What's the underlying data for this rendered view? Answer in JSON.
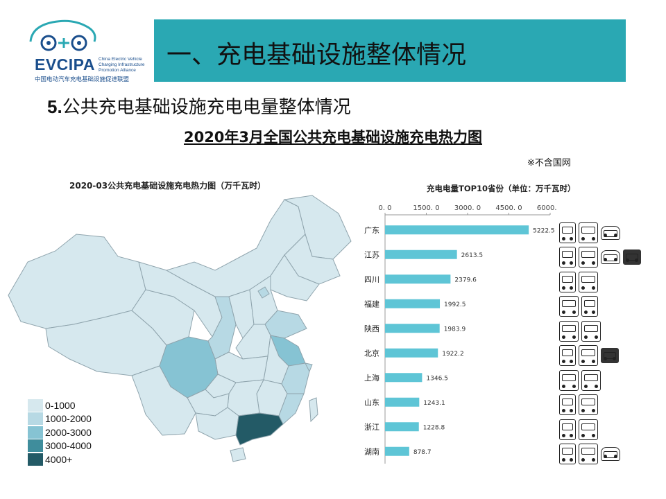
{
  "logo": {
    "name": "EVCIPA",
    "en": "China Electric Vehicle Charging Infrastructure Promotion Alliance",
    "cn": "中国电动汽车充电基础设施促进联盟"
  },
  "header": {
    "title": "一、充电基础设施整体情况"
  },
  "section": {
    "number": "5.",
    "title": "公共充电基础设施充电电量整体情况"
  },
  "heading": "2020年3月全国公共充电基础设施充电热力图",
  "note": "※不含国网",
  "colors": {
    "bin1": "#d6e8ee",
    "bin2": "#b7d9e4",
    "bin3": "#86c3d3",
    "bin4": "#3f8d9c",
    "bin5": "#235a66",
    "bar": "#5ec5d6"
  },
  "map": {
    "title": "2020-03公共充电基础设施充电热力图（万千瓦时）",
    "legend": [
      {
        "label": "0-1000",
        "color": "#d6e8ee"
      },
      {
        "label": "1000-2000",
        "color": "#b7d9e4"
      },
      {
        "label": "2000-3000",
        "color": "#86c3d3"
      },
      {
        "label": "3000-4000",
        "color": "#3f8d9c"
      },
      {
        "label": "4000+",
        "color": "#235a66"
      }
    ]
  },
  "chart_data": {
    "type": "bar",
    "orientation": "horizontal",
    "title": "充电电量TOP10省份（单位：万千瓦时）",
    "categories": [
      "广东",
      "江苏",
      "四川",
      "福建",
      "陕西",
      "北京",
      "上海",
      "山东",
      "浙江",
      "湖南"
    ],
    "values": [
      5222.5,
      2613.5,
      2379.6,
      1992.5,
      1983.9,
      1922.2,
      1346.5,
      1243.1,
      1228.8,
      878.7
    ],
    "value_labels": [
      "5222.5",
      "2613.5",
      "2379.6",
      "1992.5",
      "1983.9",
      "1922.2",
      "1346.5",
      "1243.1",
      "1228.8",
      "878.7"
    ],
    "xticks": [
      0,
      1500,
      3000,
      4500,
      6000
    ],
    "xtick_labels": [
      "0. 0",
      "1500. 0",
      "3000. 0",
      "4500. 0",
      "6000. 0"
    ],
    "xlim": [
      0,
      6000
    ],
    "axis_position": "top",
    "grid": false
  },
  "icons": [
    [
      "bus-icon",
      "car-icon",
      "taxi-icon"
    ],
    [
      "bus-icon",
      "car-icon",
      "taxi-icon",
      "truck-icon"
    ],
    [
      "bus-icon",
      "car-icon"
    ],
    [
      "car-icon",
      "bus-icon"
    ],
    [
      "car-icon",
      "car-icon"
    ],
    [
      "bus-icon",
      "car-icon",
      "truck-icon"
    ],
    [
      "car-icon",
      "car-icon"
    ],
    [
      "bus-icon",
      "car-icon"
    ],
    [
      "bus-icon",
      "car-icon"
    ],
    [
      "bus-icon",
      "car-icon",
      "taxi-icon"
    ]
  ]
}
